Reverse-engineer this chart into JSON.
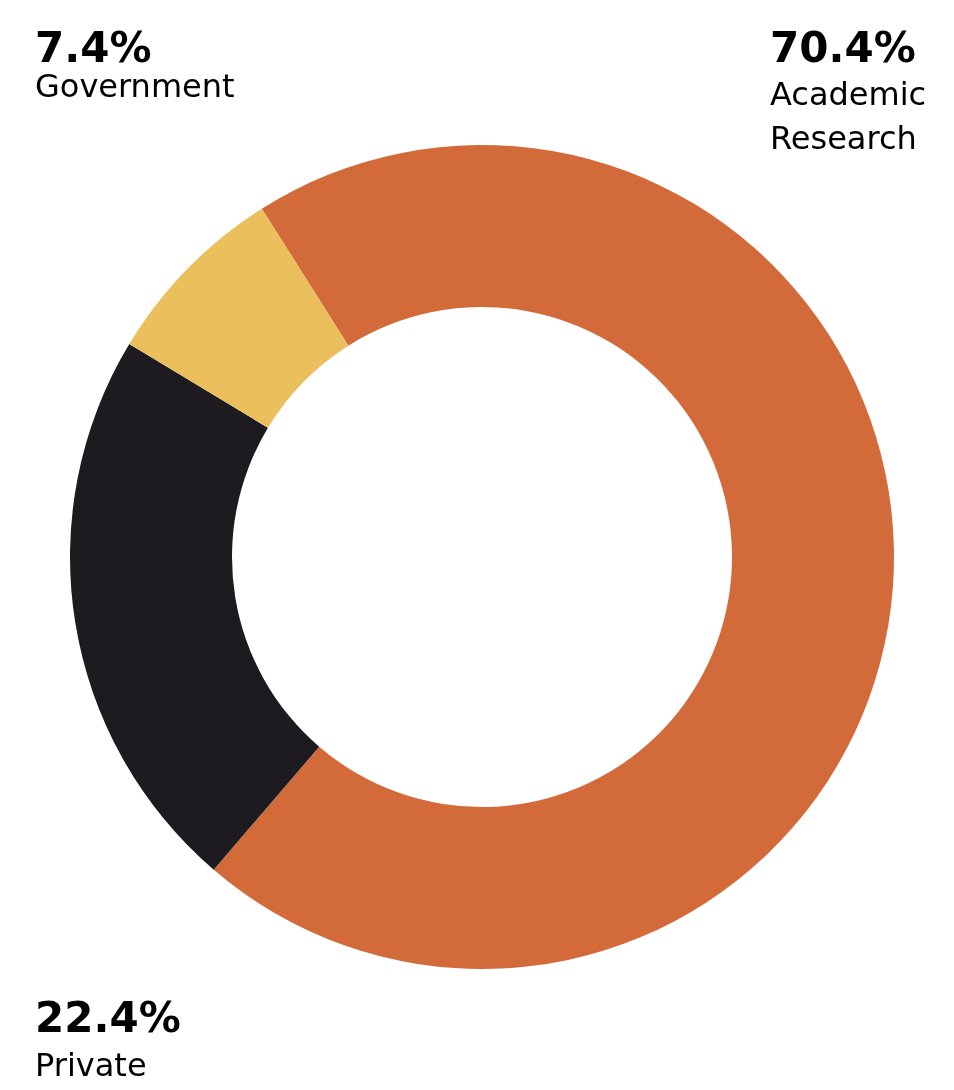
{
  "chart_data": {
    "type": "donut",
    "categories": [
      "Academic Research",
      "Private",
      "Government"
    ],
    "values": [
      70.4,
      22.4,
      7.4
    ],
    "value_labels": [
      "70.4%",
      "22.4%",
      "7.4%"
    ],
    "colors": [
      "#d26a3a",
      "#1d1b1f",
      "#eabf5c"
    ]
  }
}
